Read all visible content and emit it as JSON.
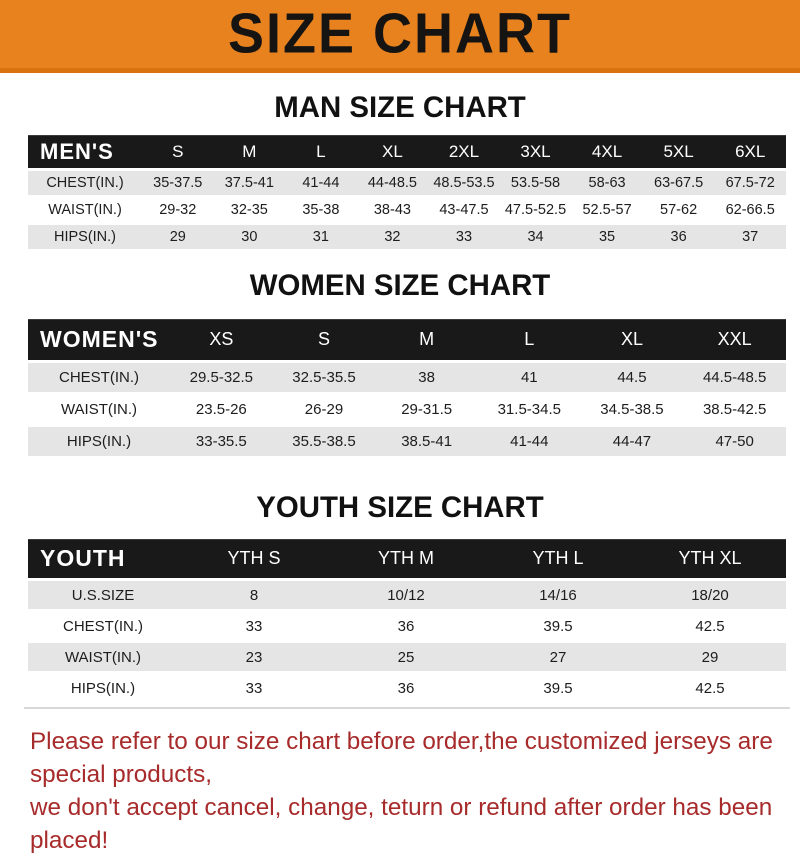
{
  "banner": {
    "title": "SIZE CHART"
  },
  "colors": {
    "banner_orange": "#E8821E",
    "header_black": "#191919",
    "row_gray": "#E5E5E5",
    "notice_red": "#A82B2B"
  },
  "men": {
    "title": "MAN SIZE CHART",
    "label": "MEN'S",
    "columns": [
      "S",
      "M",
      "L",
      "XL",
      "2XL",
      "3XL",
      "4XL",
      "5XL",
      "6XL"
    ],
    "rows": [
      {
        "label": "CHEST(IN.)",
        "values": [
          "35-37.5",
          "37.5-41",
          "41-44",
          "44-48.5",
          "48.5-53.5",
          "53.5-58",
          "58-63",
          "63-67.5",
          "67.5-72"
        ]
      },
      {
        "label": "WAIST(IN.)",
        "values": [
          "29-32",
          "32-35",
          "35-38",
          "38-43",
          "43-47.5",
          "47.5-52.5",
          "52.5-57",
          "57-62",
          "62-66.5"
        ]
      },
      {
        "label": "HIPS(IN.)",
        "values": [
          "29",
          "30",
          "31",
          "32",
          "33",
          "34",
          "35",
          "36",
          "37"
        ]
      }
    ]
  },
  "women": {
    "title": "WOMEN SIZE CHART",
    "label": "WOMEN'S",
    "columns": [
      "XS",
      "S",
      "M",
      "L",
      "XL",
      "XXL"
    ],
    "rows": [
      {
        "label": "CHEST(IN.)",
        "values": [
          "29.5-32.5",
          "32.5-35.5",
          "38",
          "41",
          "44.5",
          "44.5-48.5"
        ]
      },
      {
        "label": "WAIST(IN.)",
        "values": [
          "23.5-26",
          "26-29",
          "29-31.5",
          "31.5-34.5",
          "34.5-38.5",
          "38.5-42.5"
        ]
      },
      {
        "label": "HIPS(IN.)",
        "values": [
          "33-35.5",
          "35.5-38.5",
          "38.5-41",
          "41-44",
          "44-47",
          "47-50"
        ]
      }
    ]
  },
  "youth": {
    "title": "YOUTH SIZE CHART",
    "label": "YOUTH",
    "columns": [
      "YTH S",
      "YTH M",
      "YTH L",
      "YTH XL"
    ],
    "rows": [
      {
        "label": "U.S.SIZE",
        "values": [
          "8",
          "10/12",
          "14/16",
          "18/20"
        ]
      },
      {
        "label": "CHEST(IN.)",
        "values": [
          "33",
          "36",
          "39.5",
          "42.5"
        ]
      },
      {
        "label": "WAIST(IN.)",
        "values": [
          "23",
          "25",
          "27",
          "29"
        ]
      },
      {
        "label": "HIPS(IN.)",
        "values": [
          "33",
          "36",
          "39.5",
          "42.5"
        ]
      }
    ]
  },
  "notice": {
    "line1": "Please refer to our size chart before order,the customized jerseys are special products,",
    "line2": "we don't accept cancel, change, teturn or refund after order has been placed!"
  }
}
